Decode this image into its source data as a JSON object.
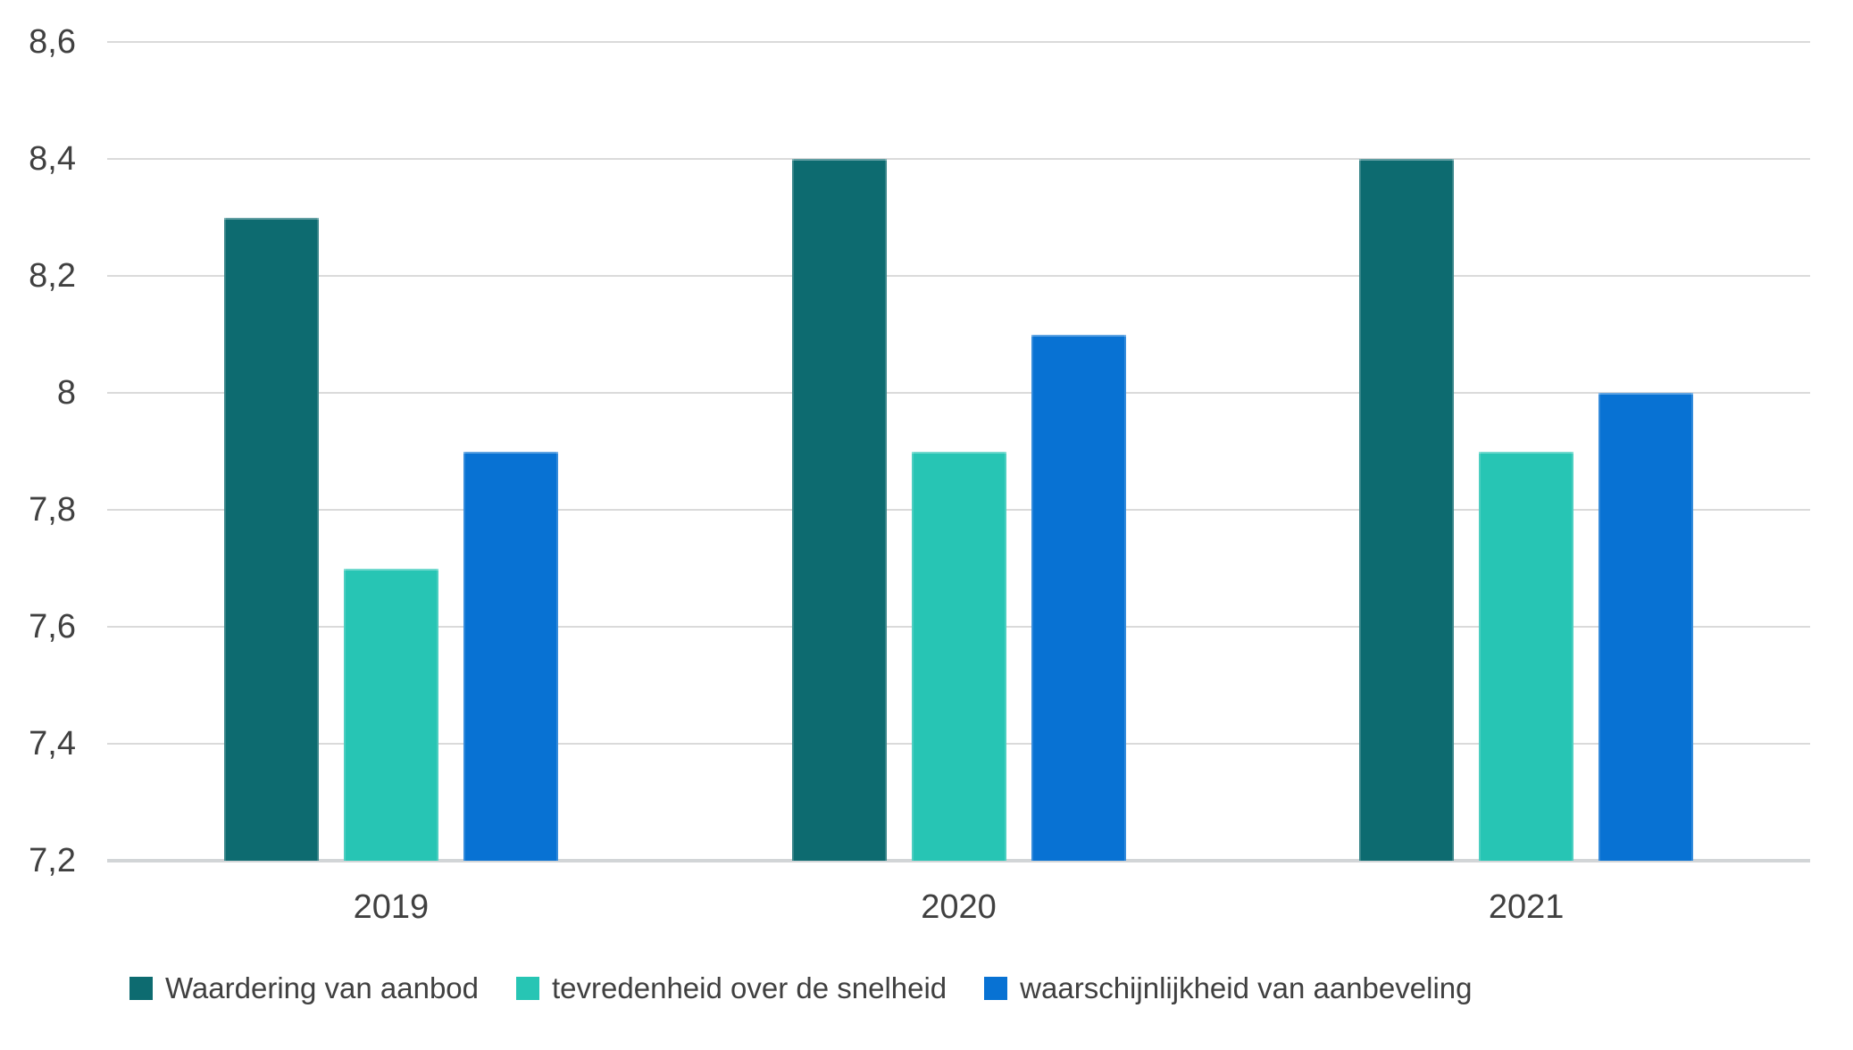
{
  "chart_data": {
    "type": "bar",
    "categories": [
      "2019",
      "2020",
      "2021"
    ],
    "series": [
      {
        "name": "Waardering van aanbod",
        "color": "#0d6b70",
        "values": [
          8.3,
          8.4,
          8.4
        ]
      },
      {
        "name": "tevredenheid over de snelheid",
        "color": "#27c5b4",
        "values": [
          7.7,
          7.9,
          7.9
        ]
      },
      {
        "name": "waarschijnlijkheid van aanbeveling",
        "color": "#0872d3",
        "values": [
          7.9,
          8.1,
          8.0
        ]
      }
    ],
    "ylim": [
      7.2,
      8.6
    ],
    "y_ticks": [
      {
        "value": 8.6,
        "label": "8,6"
      },
      {
        "value": 8.4,
        "label": "8,4"
      },
      {
        "value": 8.2,
        "label": "8,2"
      },
      {
        "value": 8.0,
        "label": "8"
      },
      {
        "value": 7.8,
        "label": "7,8"
      },
      {
        "value": 7.6,
        "label": "7,6"
      },
      {
        "value": 7.4,
        "label": "7,4"
      },
      {
        "value": 7.2,
        "label": "7,2"
      }
    ],
    "decimal_separator": ",",
    "grid": true,
    "legend_position": "bottom",
    "background_color": "#ffffff",
    "gridline_color": "#dadada",
    "baseline_color": "#d2d5d7",
    "text_color": "#404040"
  }
}
